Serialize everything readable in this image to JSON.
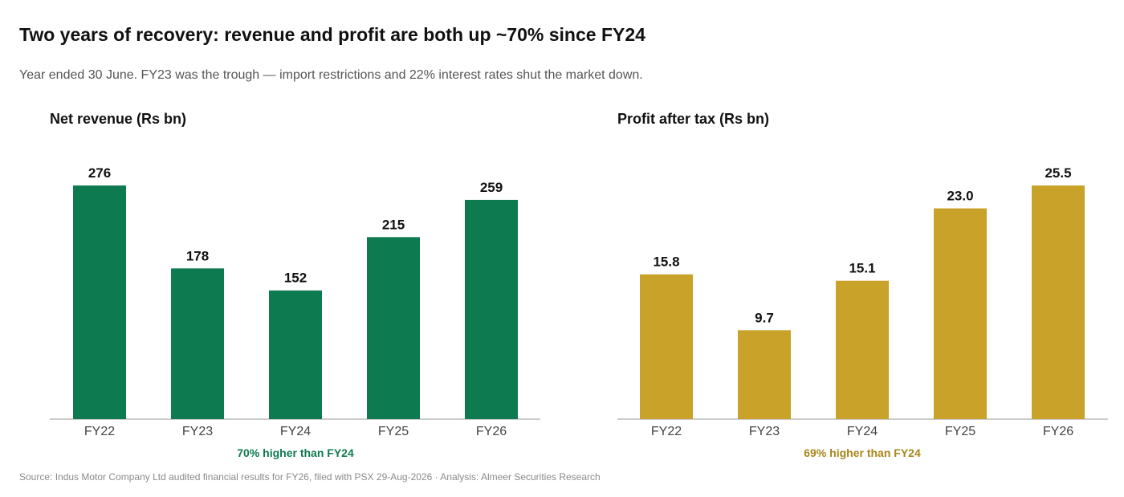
{
  "header": {
    "title": "Two years of recovery: revenue and profit are both up ~70% since FY24",
    "subtitle": "Year ended 30 June. FY23 was the trough — import restrictions and 22% interest rates shut the market down."
  },
  "footer": {
    "source": "Source: Indus Motor Company Ltd audited financial results for FY26, filed with PSX 29-Aug-2026  ·  Analysis: Almeer Securities Research"
  },
  "chart_data": [
    {
      "type": "bar",
      "title": "Net revenue  (Rs bn)",
      "categories": [
        "FY22",
        "FY23",
        "FY24",
        "FY25",
        "FY26"
      ],
      "values": [
        276,
        178,
        152,
        215,
        259
      ],
      "value_labels": [
        "276",
        "178",
        "152",
        "215",
        "259"
      ],
      "ylim": [
        0,
        276
      ],
      "color": "#0e7a50",
      "annotation": "70% higher than FY24",
      "grid": false
    },
    {
      "type": "bar",
      "title": "Profit after tax  (Rs bn)",
      "categories": [
        "FY22",
        "FY23",
        "FY24",
        "FY25",
        "FY26"
      ],
      "values": [
        15.8,
        9.7,
        15.1,
        23.0,
        25.5
      ],
      "value_labels": [
        "15.8",
        "9.7",
        "15.1",
        "23.0",
        "25.5"
      ],
      "ylim": [
        0,
        25.5
      ],
      "color": "#c9a229",
      "annotation": "69% higher than FY24",
      "grid": false
    }
  ]
}
